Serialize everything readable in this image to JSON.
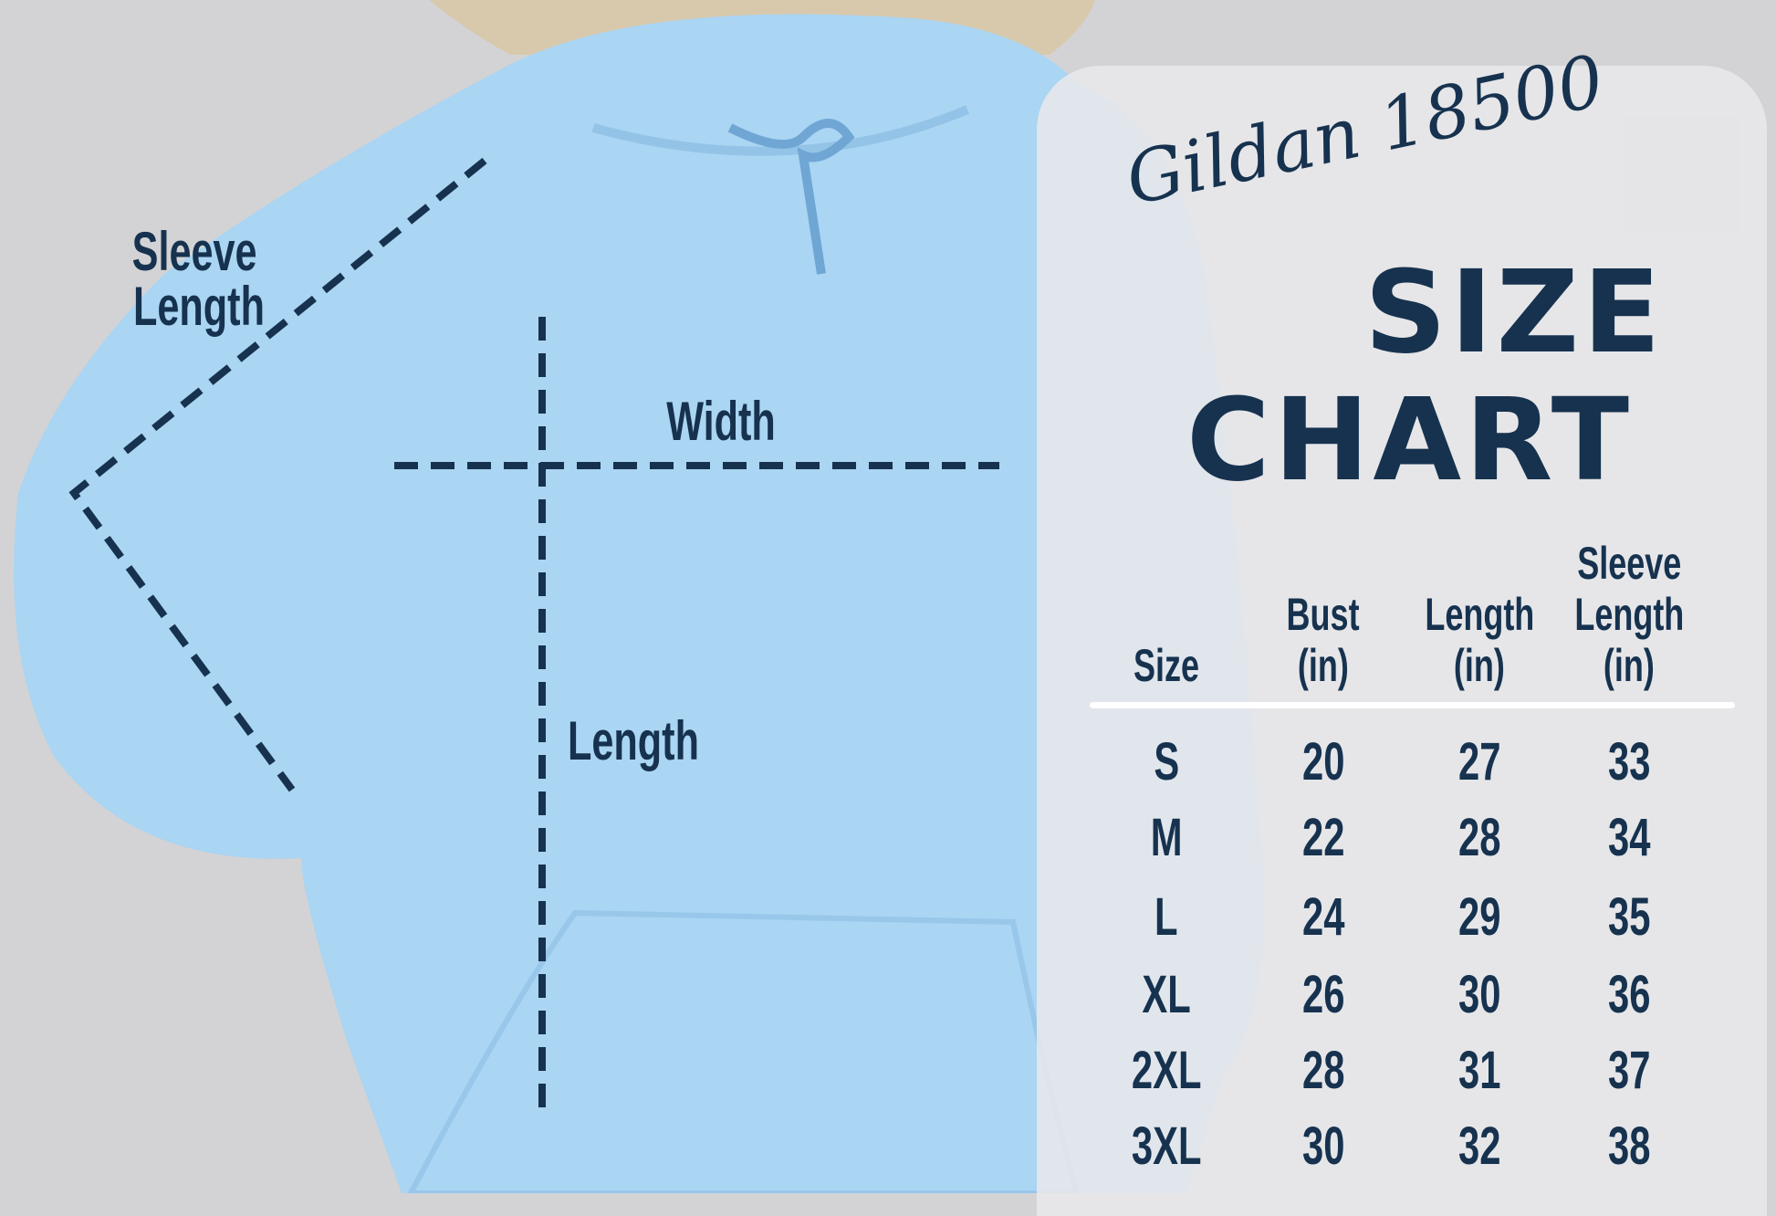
{
  "annotations": {
    "sleeve_length": [
      "Sleeve",
      "Length"
    ],
    "width": "Width",
    "length": "Length"
  },
  "chart": {
    "brand_title": "Gildan 18500",
    "title_line1": "SIZE",
    "title_line2": "CHART"
  },
  "chart_data": {
    "type": "table",
    "columns": [
      {
        "label": [
          "Size"
        ]
      },
      {
        "label": [
          "Bust",
          "(in)"
        ]
      },
      {
        "label": [
          "Length",
          "(in)"
        ]
      },
      {
        "label": [
          "Sleeve",
          "Length",
          "(in)"
        ]
      }
    ],
    "rows": [
      [
        "S",
        "20",
        "27",
        "33"
      ],
      [
        "M",
        "22",
        "28",
        "34"
      ],
      [
        "L",
        "24",
        "29",
        "35"
      ],
      [
        "XL",
        "26",
        "30",
        "36"
      ],
      [
        "2XL",
        "28",
        "31",
        "37"
      ],
      [
        "3XL",
        "30",
        "32",
        "38"
      ]
    ]
  },
  "colors": {
    "background": "#d3d3d5",
    "hoodie": "#aad5f3",
    "text": "#16324f",
    "panel": "#e8e8ea"
  }
}
